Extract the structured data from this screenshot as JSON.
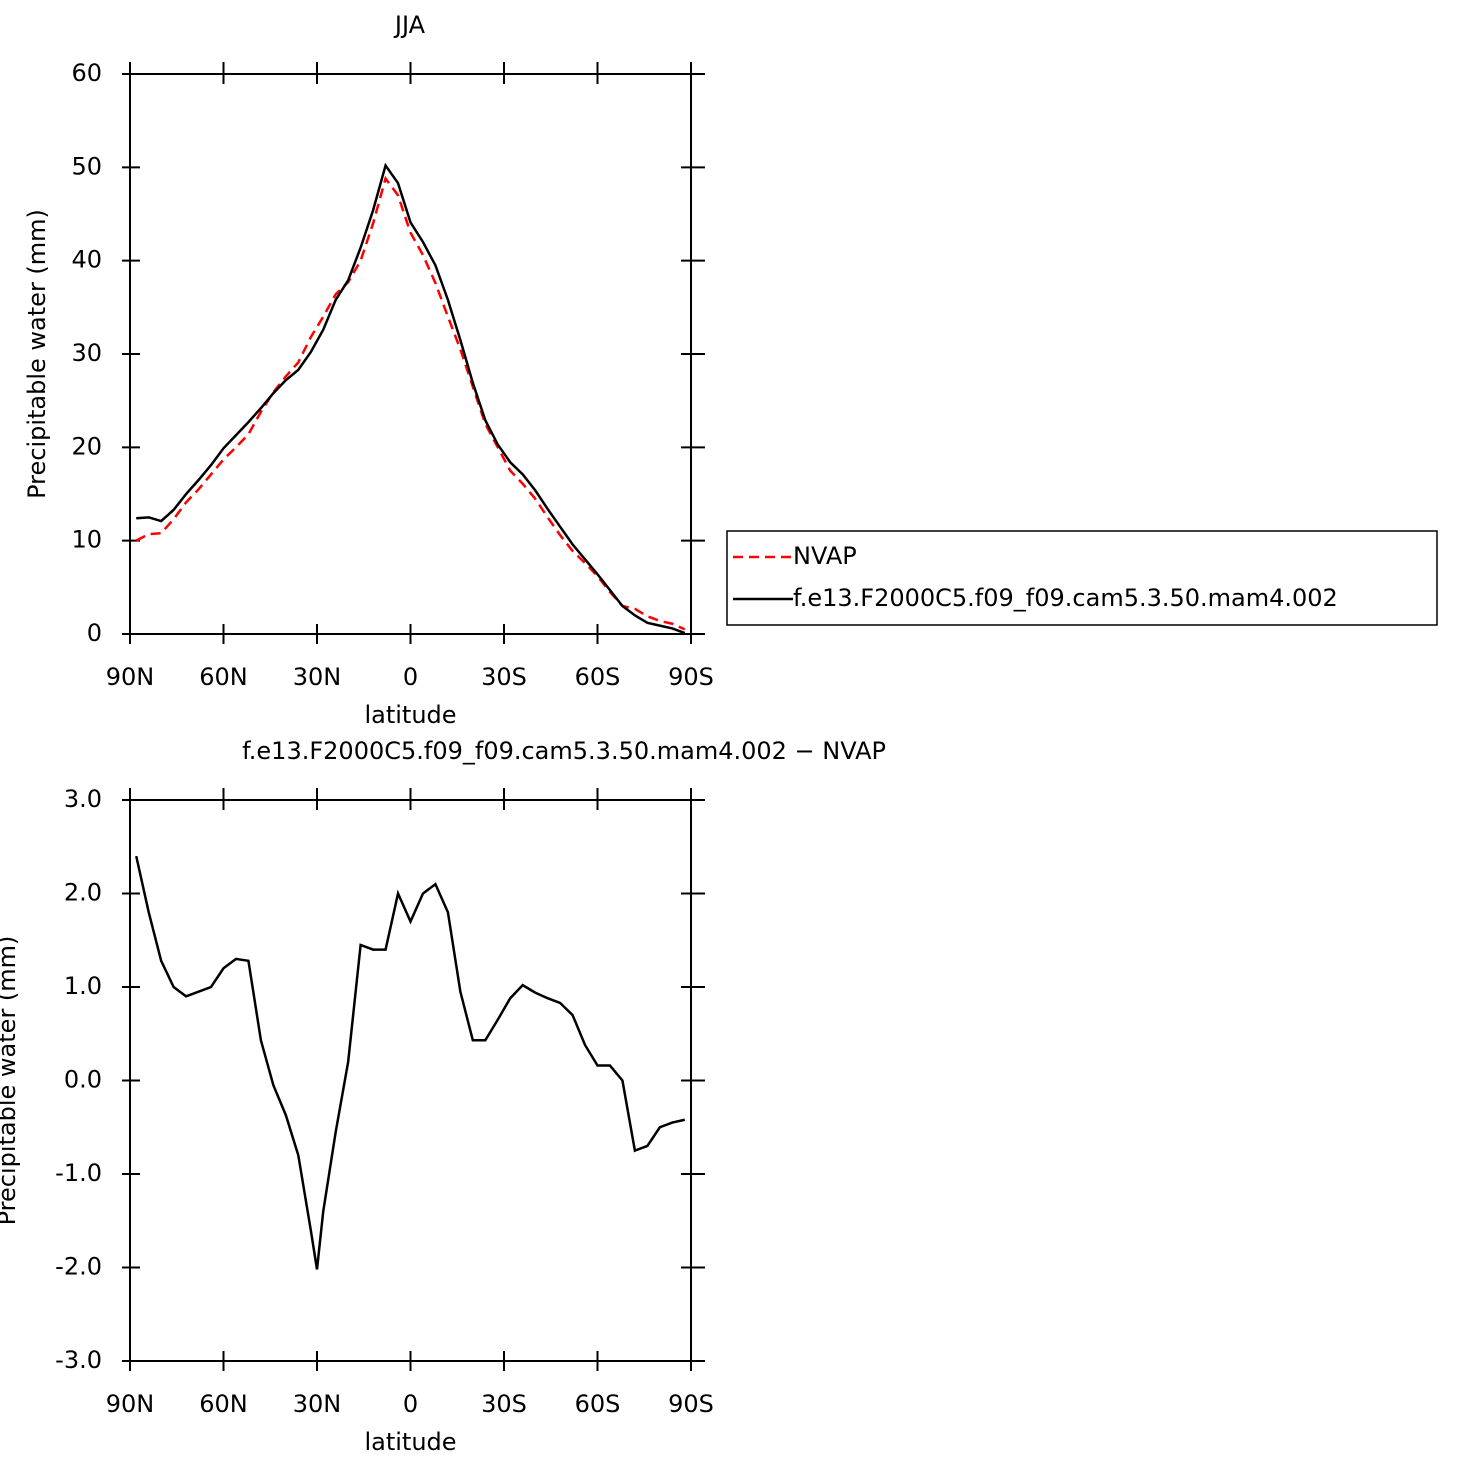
{
  "chart_data": [
    {
      "type": "line",
      "title": "JJA",
      "xlabel": "latitude",
      "ylabel": "Precipitable water (mm)",
      "x": [
        88,
        84,
        80,
        76,
        72,
        68,
        64,
        60,
        56,
        52,
        48,
        44,
        40,
        36,
        32,
        28,
        24,
        20,
        16,
        12,
        8,
        4,
        0,
        -4,
        -8,
        -12,
        -16,
        -20,
        -24,
        -28,
        -32,
        -36,
        -40,
        -44,
        -48,
        -52,
        -56,
        -60,
        -64,
        -68,
        -72,
        -76,
        -80,
        -84,
        -88
      ],
      "series": [
        {
          "name": "NVAP",
          "color": "#ff0000",
          "linestyle": "dashed",
          "values": [
            10.0,
            10.7,
            10.8,
            12.3,
            14.1,
            15.5,
            17.1,
            18.7,
            20.0,
            21.4,
            23.8,
            25.9,
            27.6,
            29.1,
            31.8,
            34.0,
            36.4,
            37.7,
            40.0,
            44.0,
            48.8,
            47.0,
            43.0,
            40.6,
            37.6,
            34.0,
            30.5,
            26.5,
            22.5,
            20.0,
            17.5,
            16.1,
            14.5,
            12.5,
            10.6,
            8.9,
            7.6,
            6.2,
            4.5,
            3.0,
            2.7,
            1.9,
            1.4,
            1.1,
            0.5
          ]
        },
        {
          "name": "f.e13.F2000C5.f09_f09.cam5.3.50.mam4.002",
          "color": "#000000",
          "linestyle": "solid",
          "values": [
            12.4,
            12.5,
            12.1,
            13.3,
            15.0,
            16.5,
            18.1,
            19.9,
            21.3,
            22.7,
            24.2,
            25.8,
            27.2,
            28.3,
            30.2,
            32.6,
            35.8,
            37.9,
            41.4,
            45.4,
            50.2,
            48.3,
            44.1,
            42.0,
            39.5,
            35.8,
            31.5,
            26.9,
            22.9,
            20.3,
            18.4,
            17.1,
            15.4,
            13.4,
            11.5,
            9.6,
            8.0,
            6.4,
            4.7,
            3.0,
            2.0,
            1.2,
            0.9,
            0.6,
            0.1
          ]
        }
      ],
      "xlim": [
        90,
        -90
      ],
      "xticks": [
        {
          "value": 90,
          "label": "90N"
        },
        {
          "value": 60,
          "label": "60N"
        },
        {
          "value": 30,
          "label": "30N"
        },
        0,
        {
          "value": -30,
          "label": "30S"
        },
        {
          "value": -60,
          "label": "60S"
        },
        {
          "value": -90,
          "label": "90S"
        }
      ],
      "ylim": [
        0,
        60
      ],
      "yticks": [
        0,
        10,
        20,
        30,
        40,
        50,
        60
      ],
      "legend": "right"
    },
    {
      "type": "line",
      "title": "f.e13.F2000C5.f09_f09.cam5.3.50.mam4.002 − NVAP",
      "xlabel": "latitude",
      "ylabel": "Precipitable water (mm)",
      "x": [
        88,
        84,
        80,
        76,
        72,
        68,
        64,
        60,
        56,
        52,
        48,
        44,
        40,
        36,
        32,
        30,
        28,
        24,
        20,
        16,
        12,
        8,
        4,
        0,
        -4,
        -8,
        -12,
        -16,
        -20,
        -24,
        -28,
        -32,
        -36,
        -40,
        -44,
        -48,
        -52,
        -56,
        -60,
        -64,
        -68,
        -72,
        -76,
        -80,
        -84,
        -88
      ],
      "series": [
        {
          "color": "#000000",
          "linestyle": "solid",
          "values": [
            2.4,
            1.8,
            1.28,
            1.0,
            0.9,
            0.95,
            1.0,
            1.2,
            1.3,
            1.28,
            0.43,
            -0.05,
            -0.37,
            -0.8,
            -1.6,
            -2.02,
            -1.4,
            -0.55,
            0.2,
            1.45,
            1.4,
            1.4,
            2.0,
            1.7,
            2.0,
            2.1,
            1.8,
            0.95,
            0.43,
            0.43,
            0.65,
            0.88,
            1.02,
            0.94,
            0.88,
            0.83,
            0.7,
            0.38,
            0.16,
            0.16,
            0.0,
            -0.75,
            -0.7,
            -0.5,
            -0.45,
            -0.42
          ]
        }
      ],
      "xlim": [
        90,
        -90
      ],
      "xticks": [
        {
          "value": 90,
          "label": "90N"
        },
        {
          "value": 60,
          "label": "60N"
        },
        {
          "value": 30,
          "label": "30N"
        },
        0,
        {
          "value": -30,
          "label": "30S"
        },
        {
          "value": -60,
          "label": "60S"
        },
        {
          "value": -90,
          "label": "90S"
        }
      ],
      "ylim": [
        -3,
        3
      ],
      "yticks": [
        {
          "value": -3,
          "label": "-3.0"
        },
        {
          "value": -2,
          "label": "-2.0"
        },
        {
          "value": -1,
          "label": "-1.0"
        },
        {
          "value": 0,
          "label": "0.0"
        },
        {
          "value": 1,
          "label": "1.0"
        },
        {
          "value": 2,
          "label": "2.0"
        },
        {
          "value": 3,
          "label": "3.0"
        }
      ]
    }
  ]
}
